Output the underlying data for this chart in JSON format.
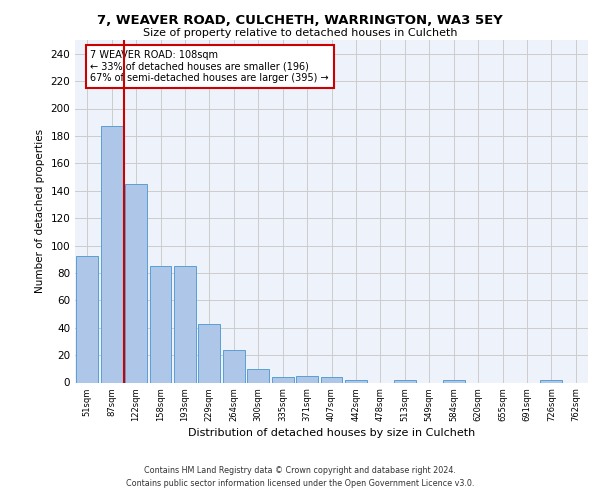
{
  "title_line1": "7, WEAVER ROAD, CULCHETH, WARRINGTON, WA3 5EY",
  "title_line2": "Size of property relative to detached houses in Culcheth",
  "xlabel": "Distribution of detached houses by size in Culcheth",
  "ylabel": "Number of detached properties",
  "bar_labels": [
    "51sqm",
    "87sqm",
    "122sqm",
    "158sqm",
    "193sqm",
    "229sqm",
    "264sqm",
    "300sqm",
    "335sqm",
    "371sqm",
    "407sqm",
    "442sqm",
    "478sqm",
    "513sqm",
    "549sqm",
    "584sqm",
    "620sqm",
    "655sqm",
    "691sqm",
    "726sqm",
    "762sqm"
  ],
  "bar_values": [
    92,
    187,
    145,
    85,
    85,
    43,
    24,
    10,
    4,
    5,
    4,
    2,
    0,
    2,
    0,
    2,
    0,
    0,
    0,
    2,
    0
  ],
  "bar_color": "#aec6e8",
  "bar_edge_color": "#5a9fd4",
  "vline_x": 1.5,
  "vline_color": "#cc0000",
  "annotation_text": "7 WEAVER ROAD: 108sqm\n← 33% of detached houses are smaller (196)\n67% of semi-detached houses are larger (395) →",
  "annotation_box_color": "#ffffff",
  "annotation_box_edge": "#cc0000",
  "ylim": [
    0,
    250
  ],
  "yticks": [
    0,
    20,
    40,
    60,
    80,
    100,
    120,
    140,
    160,
    180,
    200,
    220,
    240
  ],
  "background_color": "#eef3fb",
  "footer_line1": "Contains HM Land Registry data © Crown copyright and database right 2024.",
  "footer_line2": "Contains public sector information licensed under the Open Government Licence v3.0."
}
